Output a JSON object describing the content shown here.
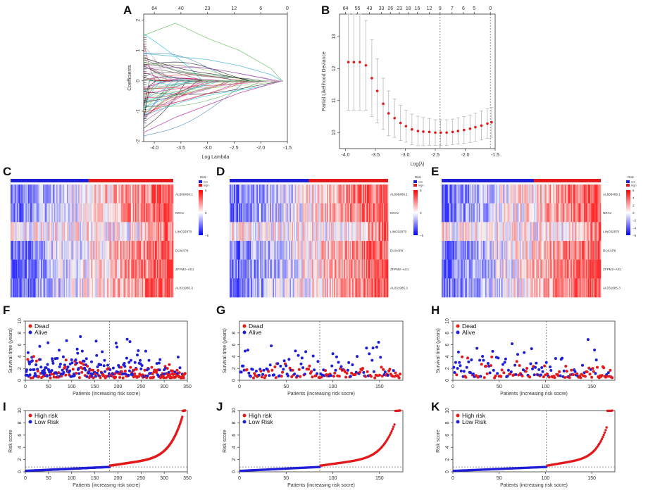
{
  "panel_letters": [
    "A",
    "B",
    "C",
    "D",
    "E",
    "F",
    "G",
    "H",
    "I",
    "J",
    "K"
  ],
  "colors": {
    "red": "#e31a1c",
    "blue": "#1f1fd6",
    "axis": "#333333",
    "errbar": "#b8b8b8"
  },
  "chart_data": [
    {
      "id": "A",
      "type": "line",
      "title": "",
      "xlabel": "Log Lambda",
      "ylabel": "Coefficients",
      "xlim": [
        -4.2,
        -1.5
      ],
      "ylim": [
        -2,
        2.2
      ],
      "xticks": [
        -4.0,
        -3.5,
        -3.0,
        -2.5,
        -2.0,
        -1.5
      ],
      "yticks": [
        -2,
        -1,
        0,
        1,
        2
      ],
      "top_axis_counts": [
        64,
        40,
        23,
        12,
        6,
        0
      ],
      "top_axis_positions": [
        -4.0,
        -3.5,
        -3.0,
        -2.5,
        -2.0,
        -1.5
      ],
      "series_count": 64,
      "series": [
        {
          "name": "path-01",
          "x": [
            -4.2,
            -3.6,
            -3.0,
            -2.4,
            -1.8,
            -1.6
          ],
          "values": [
            1.5,
            1.9,
            1.4,
            1.0,
            0.4,
            0.0
          ]
        },
        {
          "name": "path-02",
          "x": [
            -4.2,
            -3.6,
            -3.0,
            -2.4,
            -1.8,
            -1.6
          ],
          "values": [
            0.9,
            0.8,
            0.7,
            0.5,
            0.2,
            0.0
          ]
        },
        {
          "name": "path-03",
          "x": [
            -4.2,
            -3.6,
            -3.0,
            -2.4,
            -1.8,
            -1.6
          ],
          "values": [
            -1.7,
            -1.2,
            -0.8,
            -0.4,
            -0.1,
            0.0
          ]
        },
        {
          "name": "path-04",
          "x": [
            -4.2,
            -3.6,
            -3.0,
            -2.4,
            -1.8,
            -1.6
          ],
          "values": [
            -1.2,
            -0.6,
            -0.2,
            -0.1,
            0.0,
            0.0
          ]
        }
      ]
    },
    {
      "id": "B",
      "type": "scatter",
      "title": "",
      "xlabel": "Log(λ)",
      "ylabel": "Partial Likelihood Deviance",
      "xlim": [
        -4.1,
        -1.5
      ],
      "ylim": [
        9.5,
        13.7
      ],
      "xticks": [
        -4.0,
        -3.5,
        -3.0,
        -2.5,
        -2.0,
        -1.5
      ],
      "yticks": [
        10,
        11,
        12,
        13
      ],
      "top_axis_counts": [
        64,
        55,
        43,
        33,
        26,
        23,
        18,
        16,
        12,
        9,
        7,
        6,
        5,
        0
      ],
      "top_axis_positions": [
        -4.0,
        -3.8,
        -3.6,
        -3.4,
        -3.25,
        -3.1,
        -2.95,
        -2.8,
        -2.6,
        -2.42,
        -2.22,
        -2.03,
        -1.85,
        -1.58
      ],
      "vlines": [
        -2.42,
        -1.58
      ],
      "x": [
        -3.95,
        -3.86,
        -3.76,
        -3.66,
        -3.56,
        -3.47,
        -3.37,
        -3.28,
        -3.18,
        -3.08,
        -2.99,
        -2.89,
        -2.79,
        -2.7,
        -2.6,
        -2.5,
        -2.41,
        -2.31,
        -2.21,
        -2.12,
        -2.02,
        -1.92,
        -1.83,
        -1.73,
        -1.63,
        -1.56
      ],
      "values": [
        12.2,
        12.2,
        12.2,
        12.1,
        11.7,
        11.3,
        10.9,
        10.6,
        10.45,
        10.3,
        10.2,
        10.1,
        10.05,
        10.03,
        10.02,
        10.0,
        10.0,
        10.0,
        10.02,
        10.05,
        10.08,
        10.12,
        10.17,
        10.22,
        10.28,
        10.32
      ],
      "error": [
        1.5,
        1.5,
        1.5,
        1.4,
        1.2,
        1.0,
        0.8,
        0.7,
        0.6,
        0.55,
        0.5,
        0.48,
        0.46,
        0.44,
        0.42,
        0.4,
        0.4,
        0.4,
        0.4,
        0.41,
        0.42,
        0.43,
        0.44,
        0.45,
        0.46,
        0.47
      ]
    },
    {
      "id": "C",
      "type": "heatmap",
      "rows": [
        "AL606489.1",
        "NRAV",
        "LINC02870",
        "DUXAP8",
        "ZFPM2−AS1",
        "AL031985.3"
      ],
      "group_split": 0.48,
      "legend_title": "Risk",
      "legend_items": [
        "low",
        "high"
      ],
      "scale_ticks": [
        "5",
        "0",
        "−5"
      ]
    },
    {
      "id": "D",
      "type": "heatmap",
      "rows": [
        "AL606489.1",
        "NRAV",
        "LINC02870",
        "DUXAP8",
        "ZFPM2−AS1",
        "AL031985.3"
      ],
      "group_split": 0.5,
      "legend_title": "Risk",
      "legend_items": [
        "low",
        "high"
      ],
      "scale_ticks": [
        "5",
        "0",
        "−5"
      ]
    },
    {
      "id": "E",
      "type": "heatmap",
      "rows": [
        "AL606489.1",
        "NRAV",
        "LINC02870",
        "DUXAP8",
        "ZFPM2−AS1",
        "AL031985.3"
      ],
      "group_split": 0.58,
      "legend_title": "Risk",
      "legend_items": [
        "low",
        "high"
      ],
      "scale_ticks": [
        "6",
        "4",
        "2",
        "0",
        "−2",
        "−4",
        "−6"
      ]
    },
    {
      "id": "F",
      "type": "scatter",
      "xlabel": "Patients (increasing risk socre)",
      "ylabel": "Survival time (years)",
      "xlim": [
        0,
        350
      ],
      "ylim": [
        0,
        10
      ],
      "xticks": [
        0,
        50,
        100,
        150,
        200,
        250,
        300,
        350
      ],
      "yticks": [
        0,
        2,
        4,
        6,
        8,
        10
      ],
      "n_patients": 345,
      "cutoff": 182,
      "legend": [
        "Dead",
        "Alive"
      ]
    },
    {
      "id": "G",
      "type": "scatter",
      "xlabel": "Patients (increasing risk socre)",
      "ylabel": "Survival time (years)",
      "xlim": [
        0,
        175
      ],
      "ylim": [
        0,
        10
      ],
      "xticks": [
        0,
        50,
        100,
        150
      ],
      "yticks": [
        0,
        2,
        4,
        6,
        8
      ],
      "n_patients": 172,
      "cutoff": 86,
      "legend": [
        "Dead",
        "Alive"
      ]
    },
    {
      "id": "H",
      "type": "scatter",
      "xlabel": "Patients (increasing risk socre)",
      "ylabel": "Survival time (years)",
      "xlim": [
        0,
        175
      ],
      "ylim": [
        0,
        10
      ],
      "xticks": [
        0,
        50,
        100,
        150
      ],
      "yticks": [
        0,
        2,
        4,
        6,
        8,
        10
      ],
      "n_patients": 172,
      "cutoff": 101,
      "legend": [
        "Dead",
        "Alive"
      ]
    },
    {
      "id": "I",
      "type": "scatter",
      "xlabel": "Patients (increasing risk socre)",
      "ylabel": "Risk score",
      "xlim": [
        0,
        350
      ],
      "ylim": [
        0,
        10
      ],
      "xticks": [
        0,
        50,
        100,
        150,
        200,
        250,
        300,
        350
      ],
      "yticks": [
        0,
        2,
        4,
        6,
        8,
        10
      ],
      "n_patients": 345,
      "cutoff": 182,
      "cutoff_score": 0.8,
      "legend": [
        "High risk",
        "Low Risk"
      ]
    },
    {
      "id": "J",
      "type": "scatter",
      "xlabel": "Patients (increasing risk socre)",
      "ylabel": "Risk score",
      "xlim": [
        0,
        175
      ],
      "ylim": [
        0,
        10
      ],
      "xticks": [
        0,
        50,
        100,
        150
      ],
      "yticks": [
        0,
        2,
        4,
        6,
        8,
        10
      ],
      "n_patients": 172,
      "cutoff": 86,
      "cutoff_score": 0.8,
      "legend": [
        "High risk",
        "Low Risk"
      ]
    },
    {
      "id": "K",
      "type": "scatter",
      "xlabel": "Patients (increasing risk socre)",
      "ylabel": "Risk score",
      "xlim": [
        0,
        175
      ],
      "ylim": [
        0,
        10
      ],
      "xticks": [
        0,
        50,
        100,
        150
      ],
      "yticks": [
        0,
        2,
        4,
        6,
        8,
        10
      ],
      "n_patients": 172,
      "cutoff": 101,
      "cutoff_score": 0.8,
      "legend": [
        "High risk",
        "Low Risk"
      ]
    }
  ]
}
